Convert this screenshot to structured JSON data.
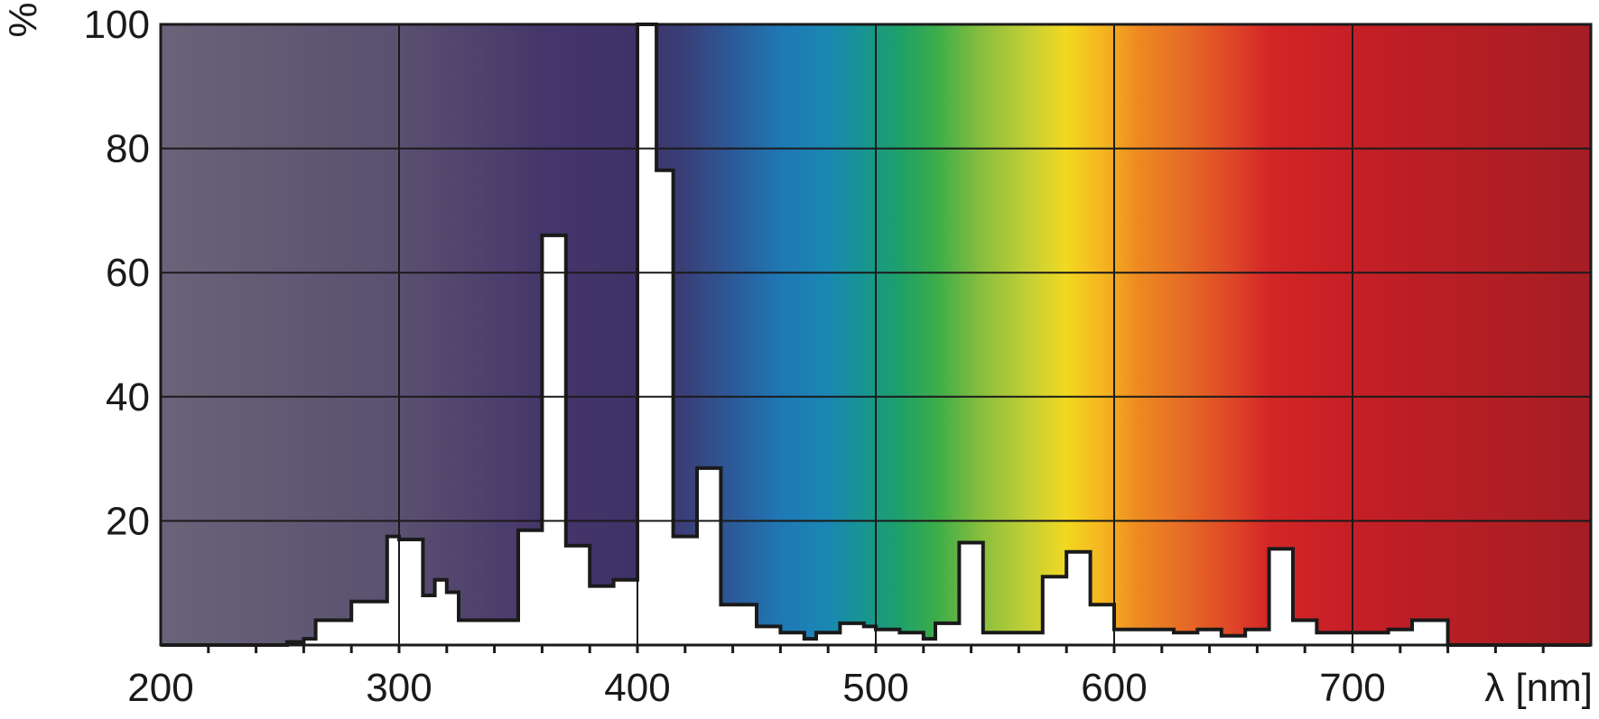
{
  "chart_data": {
    "type": "area",
    "title": "",
    "ylabel": "%",
    "xlabel": "λ [nm]",
    "xlim": [
      200,
      800
    ],
    "ylim": [
      0,
      100
    ],
    "x_ticks": [
      200,
      300,
      400,
      500,
      600,
      700
    ],
    "y_ticks": [
      20,
      40,
      60,
      80,
      100
    ],
    "x_tick_labels": [
      "200",
      "300",
      "400",
      "500",
      "600",
      "700"
    ],
    "y_tick_labels": [
      "20",
      "40",
      "60",
      "80",
      "100"
    ],
    "grid": true,
    "legend": "none",
    "series": [
      {
        "step_x": [
          200,
          253,
          260,
          265,
          275,
          280,
          290,
          295,
          300,
          310,
          315,
          320,
          325,
          345,
          350,
          355,
          360,
          365,
          370,
          375,
          380,
          385,
          390,
          400,
          405,
          408,
          411,
          415,
          420,
          425,
          430,
          435,
          440,
          445,
          450,
          455,
          460,
          465,
          470,
          475,
          480,
          485,
          490,
          495,
          500,
          505,
          510,
          515,
          520,
          525,
          530,
          535,
          540,
          545,
          550,
          555,
          560,
          565,
          570,
          575,
          580,
          585,
          590,
          595,
          600,
          605,
          610,
          615,
          620,
          625,
          630,
          635,
          640,
          645,
          650,
          655,
          660,
          665,
          670,
          675,
          680,
          685,
          690,
          695,
          700,
          705,
          710,
          715,
          720,
          725,
          730,
          740,
          800
        ],
        "step_y": [
          0,
          0.5,
          1,
          4,
          4,
          7,
          7,
          17.5,
          17,
          8,
          10.5,
          8.5,
          4,
          4,
          18.5,
          18.5,
          66,
          66,
          16,
          16,
          9.5,
          9.5,
          10.5,
          100,
          100,
          76.5,
          76.5,
          17.5,
          17.5,
          28.5,
          28.5,
          6.5,
          6.5,
          6.5,
          3,
          3,
          2,
          2,
          1,
          2,
          2,
          3.5,
          3.5,
          3,
          2.5,
          2.5,
          2,
          2,
          1,
          3.5,
          3.5,
          16.5,
          16.5,
          2,
          2,
          2,
          2,
          2,
          11,
          11,
          15,
          15,
          6.5,
          6.5,
          2.5,
          2.5,
          2.5,
          2.5,
          2.5,
          2,
          2,
          2.5,
          2.5,
          1.5,
          1.5,
          2.5,
          2.5,
          15.5,
          15.5,
          4,
          4,
          2,
          2,
          2,
          2,
          2,
          2,
          2.5,
          2.5,
          4,
          4,
          0,
          0
        ]
      }
    ],
    "spectrum_colors": [
      {
        "x": 200,
        "color": "#6a6378"
      },
      {
        "x": 300,
        "color": "#5a5070"
      },
      {
        "x": 340,
        "color": "#4d3f6c"
      },
      {
        "x": 360,
        "color": "#45366a"
      },
      {
        "x": 400,
        "color": "#3e3268"
      },
      {
        "x": 420,
        "color": "#3a3f78"
      },
      {
        "x": 440,
        "color": "#2c5a98"
      },
      {
        "x": 460,
        "color": "#1f78b4"
      },
      {
        "x": 480,
        "color": "#1a87b3"
      },
      {
        "x": 495,
        "color": "#179590"
      },
      {
        "x": 510,
        "color": "#1fa06a"
      },
      {
        "x": 525,
        "color": "#3aac4a"
      },
      {
        "x": 545,
        "color": "#8bbf3c"
      },
      {
        "x": 565,
        "color": "#c6d035"
      },
      {
        "x": 580,
        "color": "#f2d821"
      },
      {
        "x": 595,
        "color": "#f5b51f"
      },
      {
        "x": 610,
        "color": "#ed8a22"
      },
      {
        "x": 630,
        "color": "#e66a26"
      },
      {
        "x": 650,
        "color": "#de4527"
      },
      {
        "x": 665,
        "color": "#d32627"
      },
      {
        "x": 700,
        "color": "#c51f26"
      },
      {
        "x": 800,
        "color": "#a51d24"
      }
    ],
    "fill_color": "#ffffff",
    "line_color": "#1a1a1a"
  }
}
